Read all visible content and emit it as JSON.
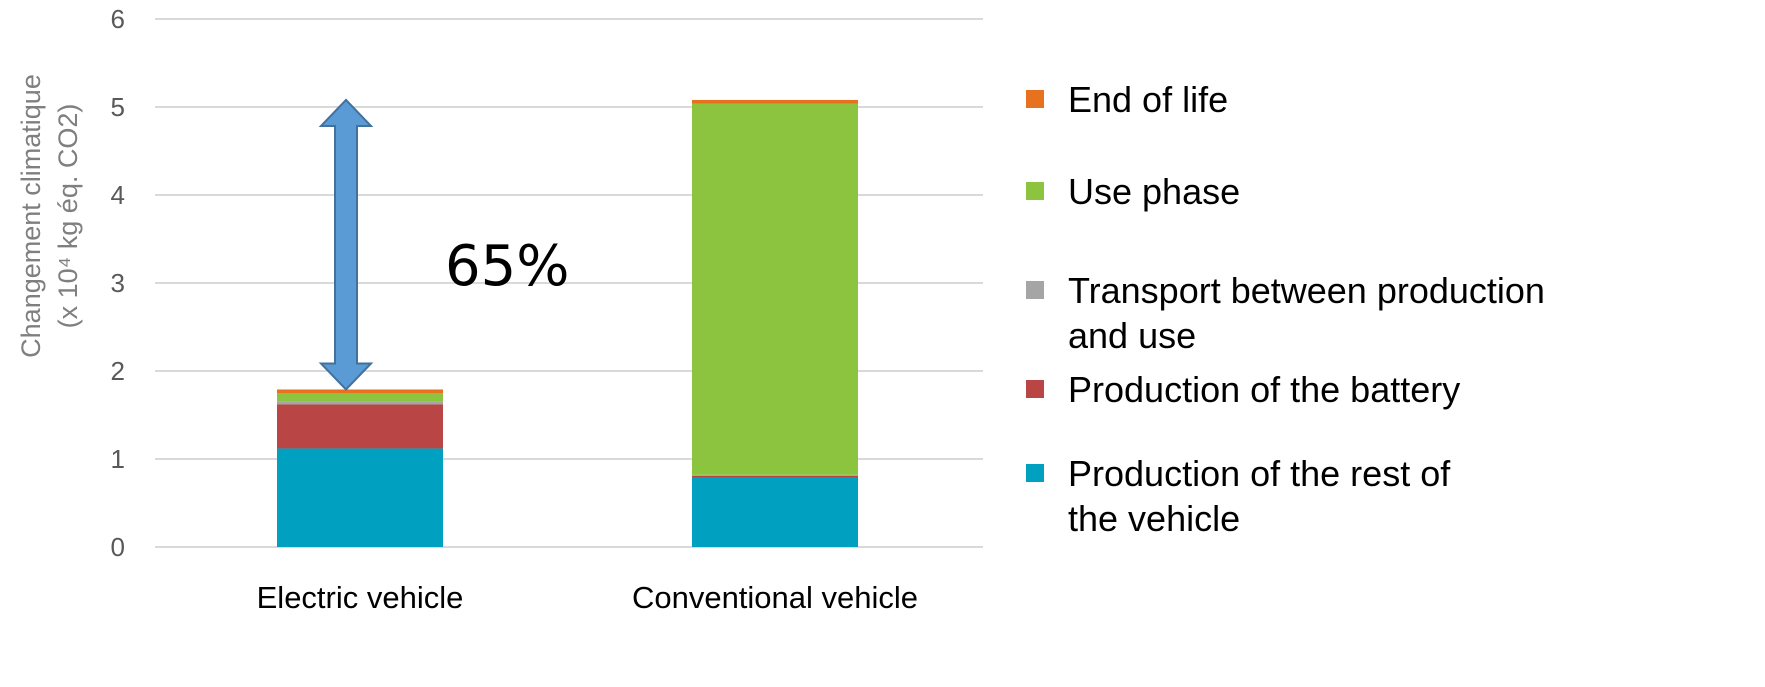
{
  "chart_data": {
    "type": "bar",
    "stacked": true,
    "categories": [
      "Electric vehicle",
      "Conventional vehicle"
    ],
    "series": [
      {
        "name": "Production of the rest of the vehicle",
        "legend_lines": [
          "Production of the rest of",
          "the vehicle"
        ],
        "color": "#00a0c0",
        "values": [
          1.12,
          0.79
        ]
      },
      {
        "name": "Production of the battery",
        "legend_lines": [
          "Production of the battery"
        ],
        "color": "#b94545",
        "values": [
          0.5,
          0.02
        ]
      },
      {
        "name": "Transport between production and use",
        "legend_lines": [
          "Transport between production",
          "and use"
        ],
        "color": "#a5a5a5",
        "values": [
          0.03,
          0.01
        ]
      },
      {
        "name": "Use phase",
        "legend_lines": [
          "Use phase"
        ],
        "color": "#8cc43f",
        "values": [
          0.1,
          4.22
        ]
      },
      {
        "name": "End of life",
        "legend_lines": [
          "End of life"
        ],
        "color": "#e8711f",
        "values": [
          0.04,
          0.04
        ]
      }
    ],
    "ylabel_lines": [
      "Changement climatique",
      "(x 10⁴ kg éq. CO2)"
    ],
    "yticks": [
      "0",
      "1",
      "2",
      "3",
      "4",
      "5",
      "6"
    ],
    "ylim": [
      0,
      6
    ],
    "grid": true,
    "legend_position": "right",
    "annotation": {
      "text": "65%",
      "arrow_from": 1.79,
      "arrow_to": 5.08,
      "arrow_color": "#5b9bd5"
    }
  }
}
